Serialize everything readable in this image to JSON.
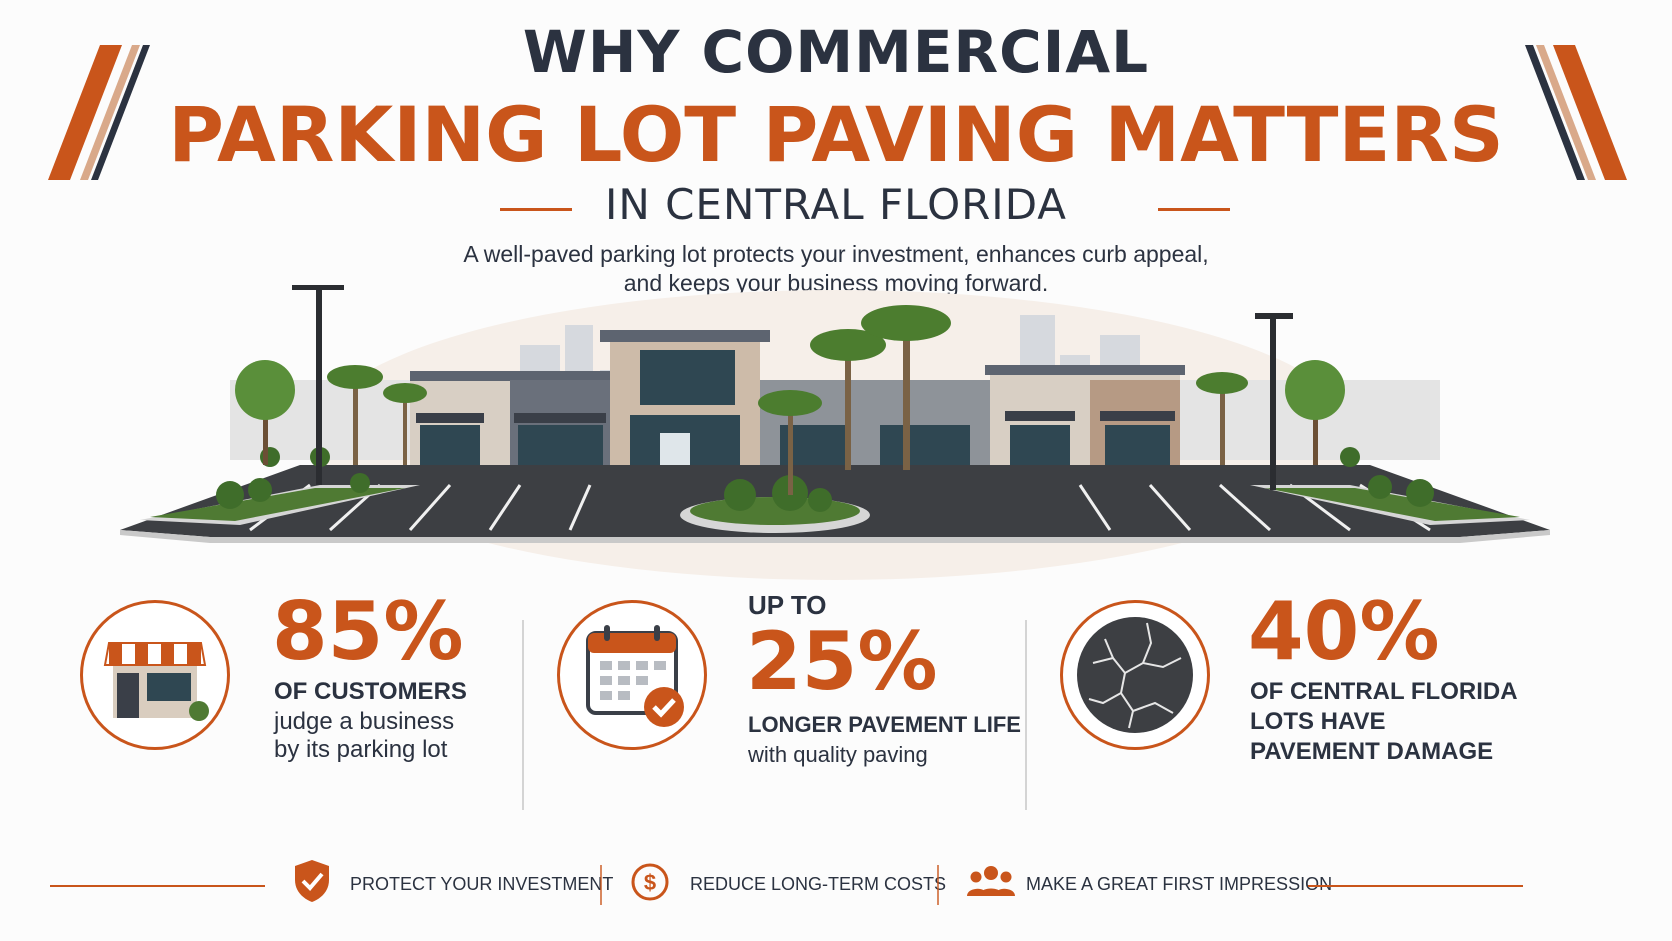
{
  "header": {
    "title_top": "WHY COMMERCIAL",
    "title_main": "PARKING LOT PAVING MATTERS",
    "subtitle": "IN CENTRAL FLORIDA",
    "tagline_line1": "A well-paved parking lot protects your investment, enhances curb appeal,",
    "tagline_line2": "and keeps your business moving forward."
  },
  "stats": [
    {
      "prefix": "",
      "value": "85%",
      "headline": "OF CUSTOMERS",
      "body_line1": "judge a business",
      "body_line2": "by its parking lot",
      "icon": "storefront-icon"
    },
    {
      "prefix": "UP TO",
      "value": "25%",
      "headline": "LONGER PAVEMENT LIFE",
      "body_line1": "with quality paving",
      "icon": "calendar-check-icon"
    },
    {
      "prefix": "",
      "value": "40%",
      "headline_line1": "OF CENTRAL FLORIDA",
      "headline_line2": "LOTS HAVE",
      "headline_line3": "PAVEMENT DAMAGE",
      "icon": "cracked-pavement-icon"
    }
  ],
  "footer": {
    "items": [
      {
        "label": "PROTECT YOUR INVESTMENT",
        "icon": "shield-check-icon"
      },
      {
        "label": "REDUCE LONG-TERM COSTS",
        "icon": "dollar-coin-icon"
      },
      {
        "label": "MAKE A GREAT FIRST IMPRESSION",
        "icon": "people-group-icon"
      }
    ]
  },
  "colors": {
    "accent": "#c9551b",
    "navy": "#2b3240",
    "tan": "#d9a98a"
  }
}
